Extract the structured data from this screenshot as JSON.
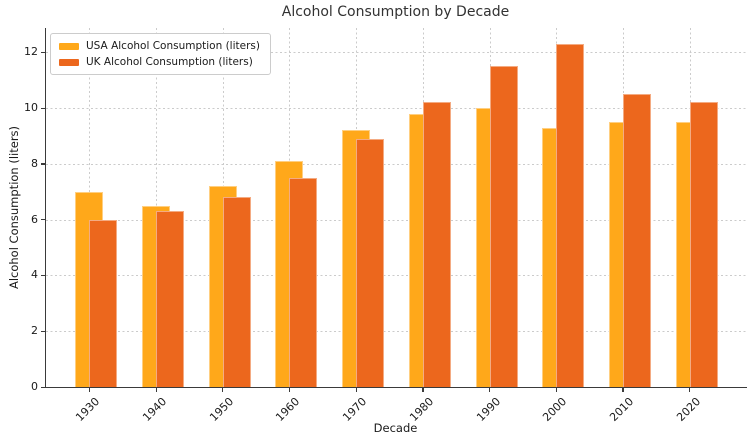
{
  "figure": {
    "title": "Alcohol Consumption by Decade",
    "xlabel": "Decade",
    "ylabel": "Alcohol Consumption (liters)"
  },
  "chart_data": {
    "type": "bar",
    "title": "Alcohol Consumption by Decade",
    "xlabel": "Decade",
    "ylabel": "Alcohol Consumption (liters)",
    "categories": [
      "1930",
      "1940",
      "1950",
      "1960",
      "1970",
      "1980",
      "1990",
      "2000",
      "2010",
      "2020"
    ],
    "series": [
      {
        "name": "USA Alcohol Consumption (liters)",
        "color": "#FFA81A",
        "values": [
          7.0,
          6.5,
          7.2,
          8.1,
          9.2,
          9.8,
          10.0,
          9.3,
          9.5,
          9.5
        ]
      },
      {
        "name": "UK Alcohol Consumption (liters)",
        "color": "#EC671D",
        "values": [
          6.0,
          6.3,
          6.8,
          7.5,
          8.9,
          10.2,
          11.5,
          12.3,
          10.5,
          10.2
        ]
      }
    ],
    "yticks": [
      0,
      2,
      4,
      6,
      8,
      10,
      12
    ],
    "ylim": [
      0,
      12.87
    ],
    "grid": true,
    "grid_style": "dotted",
    "grid_color": "#cbcbcb",
    "spine_color": "#3a3a3a",
    "legend_position": "upper left",
    "bar_style": "overlapping-pairs",
    "xtick_rotation": 45
  }
}
